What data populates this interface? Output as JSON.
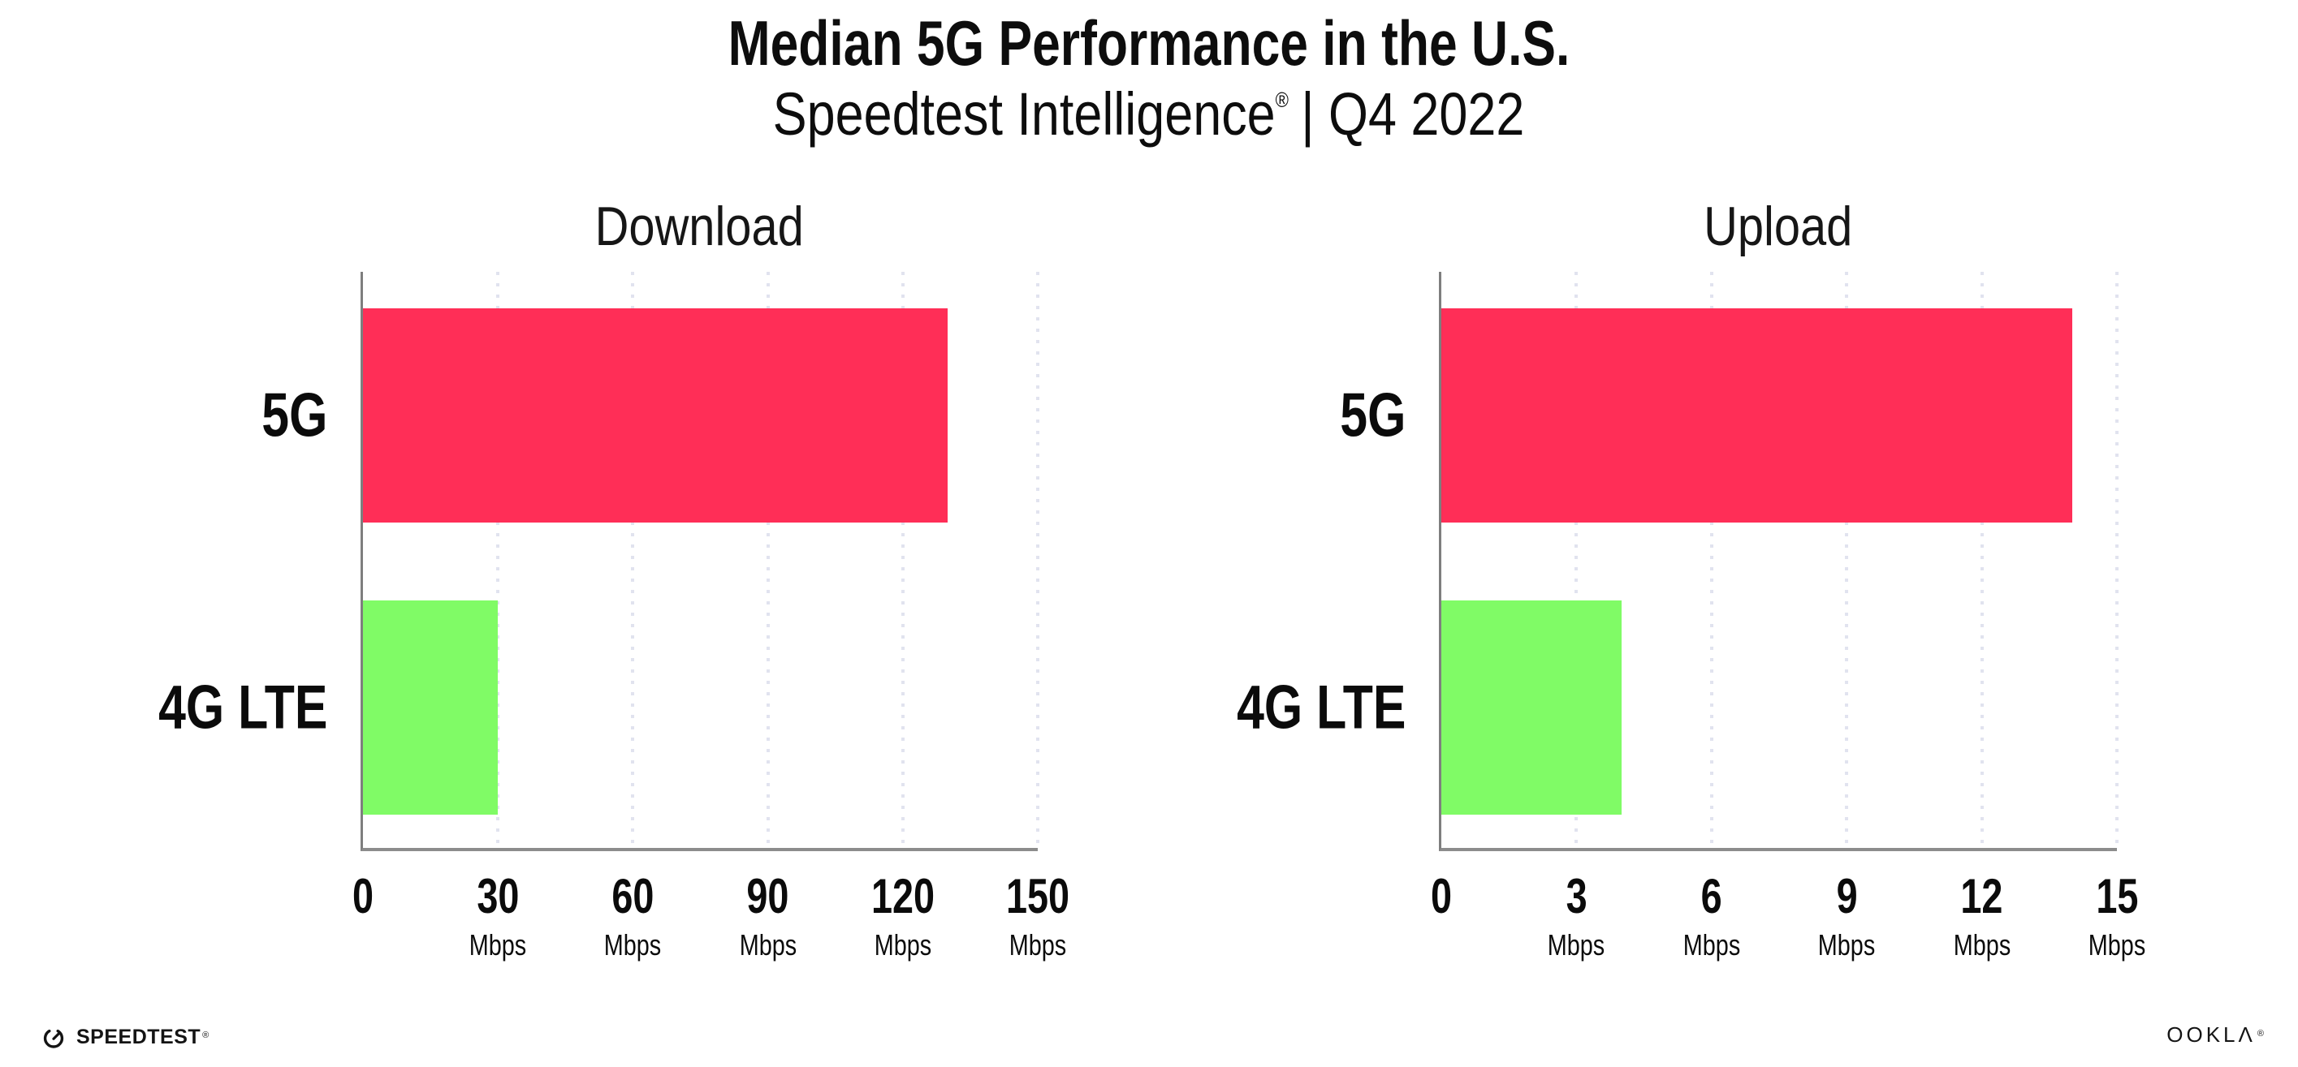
{
  "header": {
    "title": "Median 5G Performance in the U.S.",
    "subtitle_brand": "Speedtest Intelligence",
    "subtitle_mark": "®",
    "subtitle_rest": "| Q4 2022"
  },
  "chart_data": [
    {
      "type": "bar",
      "orientation": "horizontal",
      "title": "Download",
      "categories": [
        "5G",
        "4G LTE"
      ],
      "values": [
        130,
        30
      ],
      "unit": "Mbps",
      "xlabel": "",
      "ylabel": "",
      "xlim": [
        0,
        150
      ],
      "xticks": [
        0,
        30,
        60,
        90,
        120,
        150
      ],
      "bar_colors": [
        "#ff2e57",
        "#80fb66"
      ],
      "grid": "dotted-vertical",
      "legend": "none"
    },
    {
      "type": "bar",
      "orientation": "horizontal",
      "title": "Upload",
      "categories": [
        "5G",
        "4G LTE"
      ],
      "values": [
        14,
        4
      ],
      "unit": "Mbps",
      "xlabel": "",
      "ylabel": "",
      "xlim": [
        0,
        15
      ],
      "xticks": [
        0,
        3,
        6,
        9,
        12,
        15
      ],
      "bar_colors": [
        "#ff2e57",
        "#80fb66"
      ],
      "grid": "dotted-vertical",
      "legend": "none"
    }
  ],
  "footer": {
    "speedtest_label": "SPEEDTEST",
    "speedtest_mark": "®",
    "speedtest_icon": "gauge-icon",
    "ookla_label": "OOKLΛ",
    "ookla_mark": "®"
  },
  "colors": {
    "bar_5g": "#ff2e57",
    "bar_4g_lte": "#80fb66",
    "axis": "#8c8c8c",
    "y_axis": "#7e7e7e",
    "gridline": "#e1e3ef",
    "text": "#0d0d0d",
    "background": "#ffffff"
  }
}
